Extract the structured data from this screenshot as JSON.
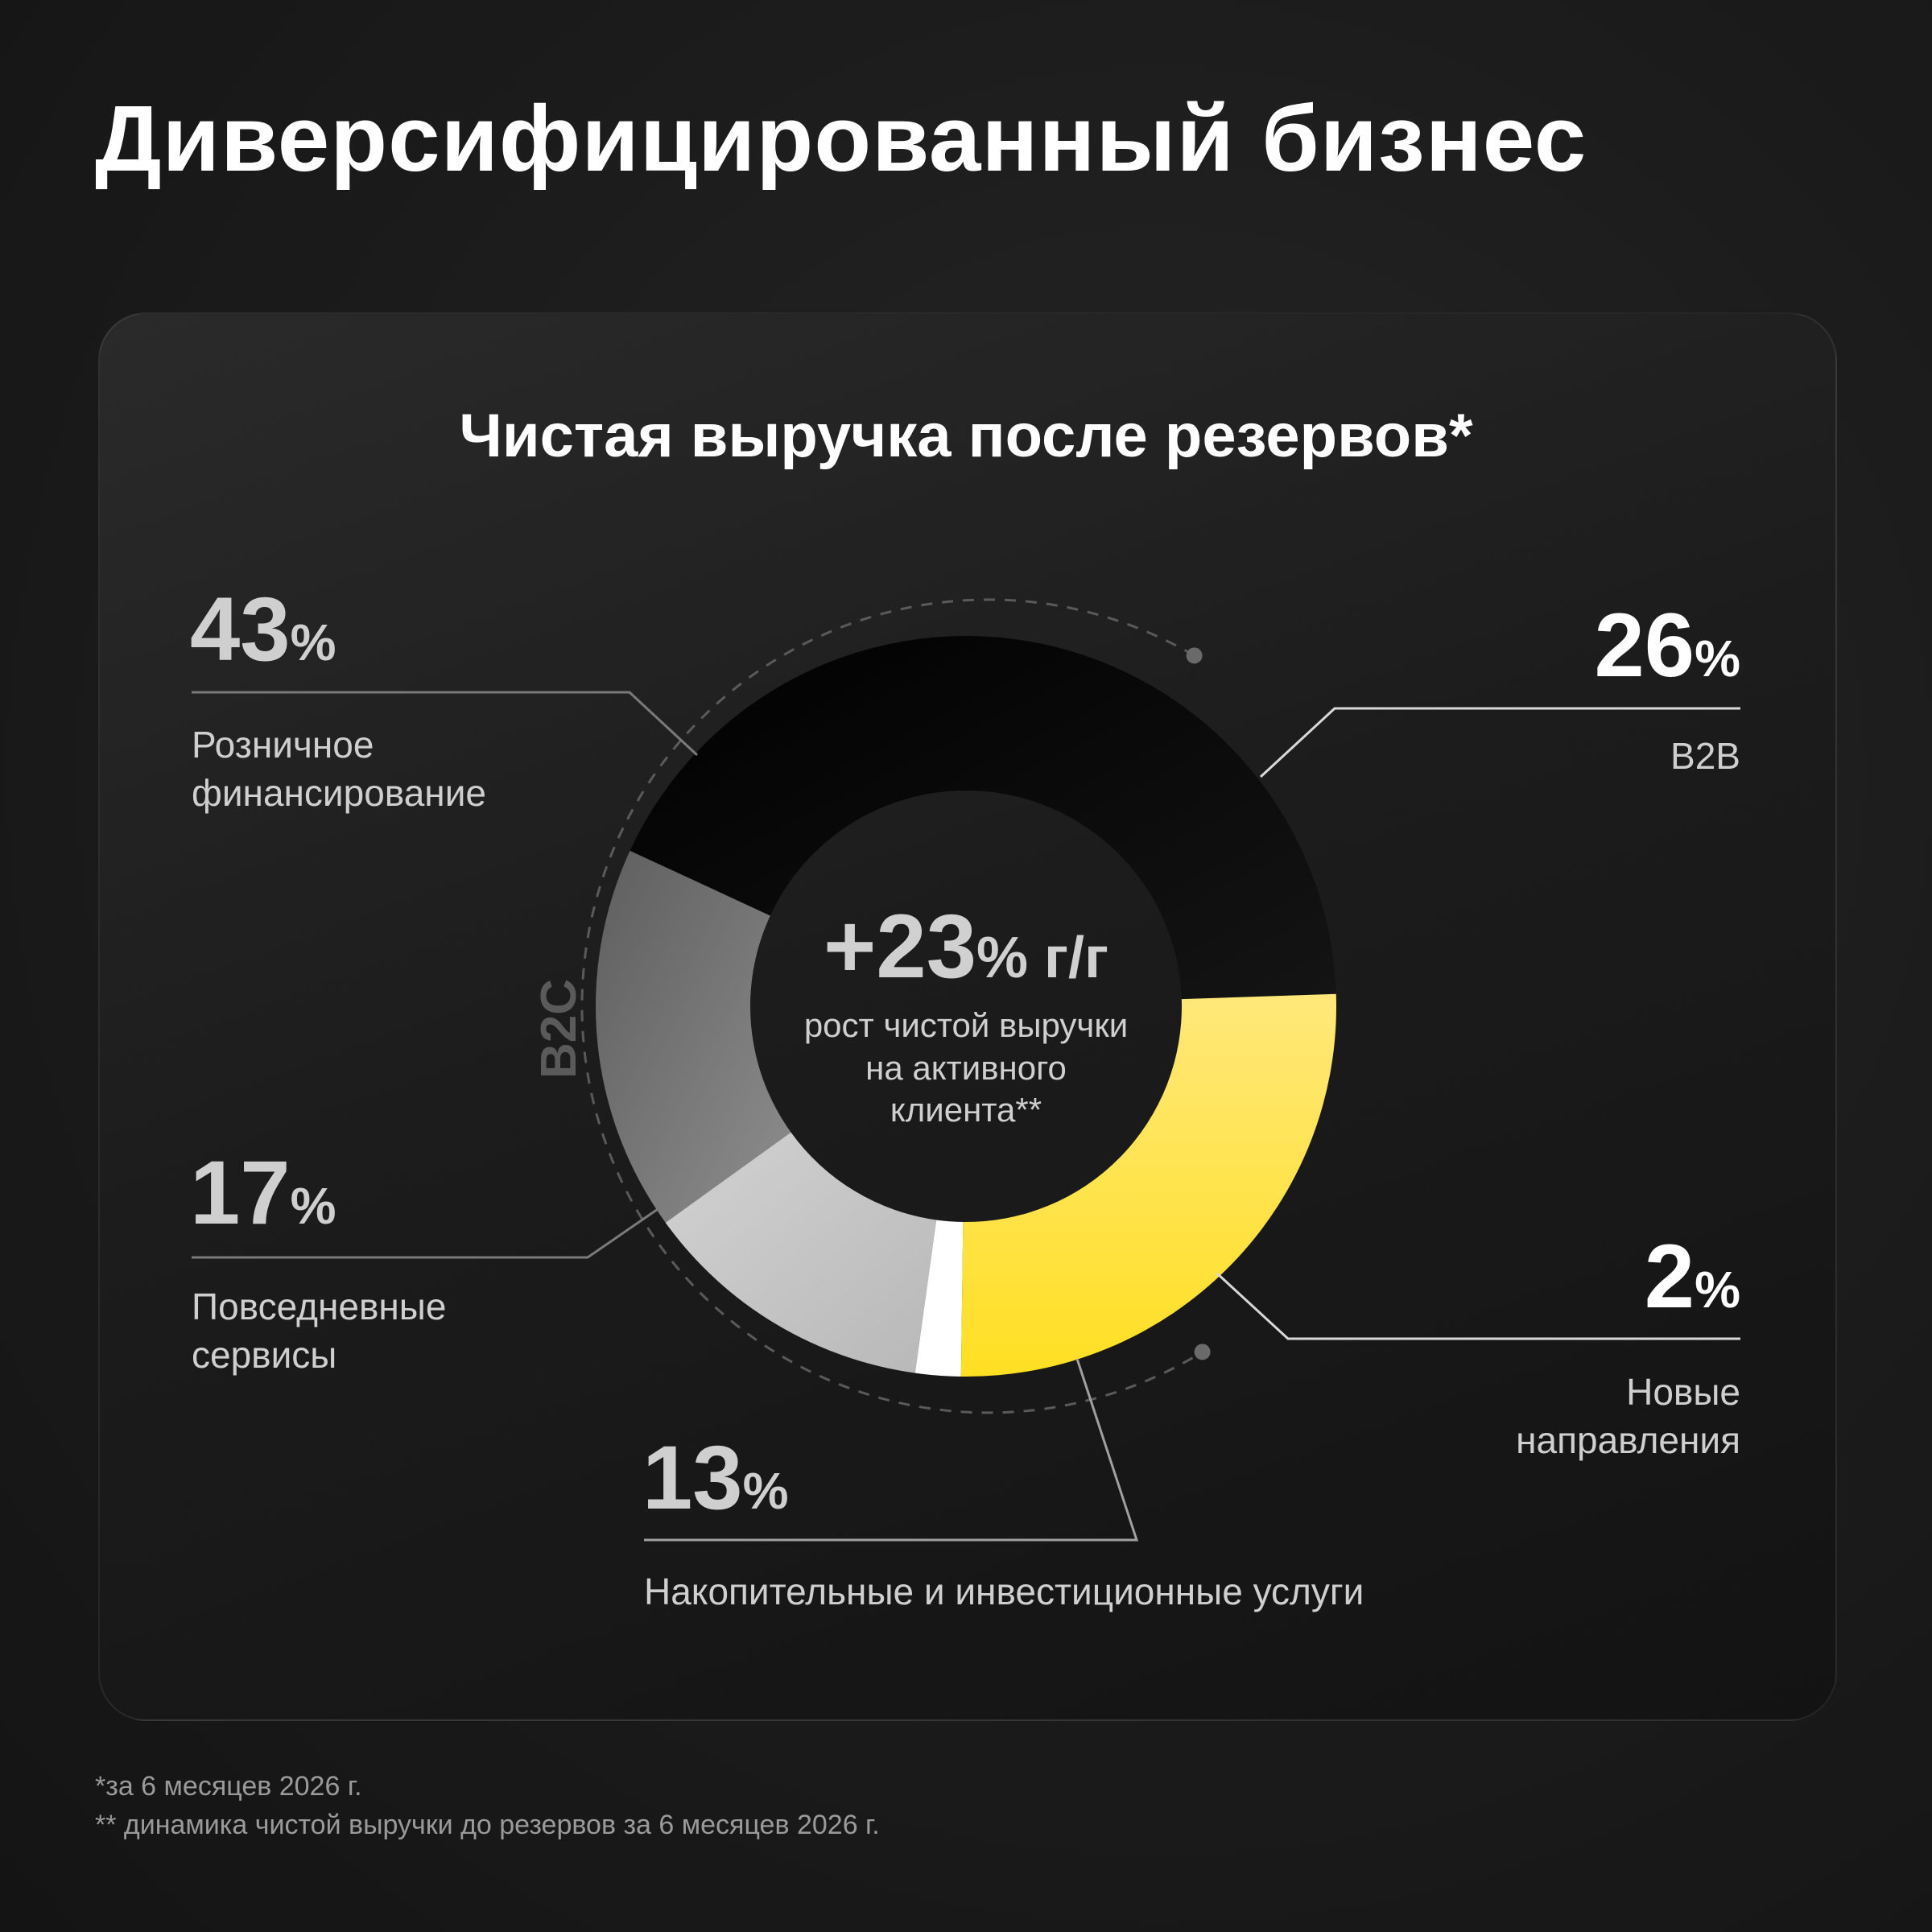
{
  "page_title": "Диверсифицированный бизнес",
  "chart_data": {
    "type": "pie",
    "title": "Чистая выручка после резервов*",
    "variant": "donut",
    "start_angle_deg": 1.9,
    "direction": "counterclockwise",
    "slices": [
      {
        "label": "Розничное финансирование",
        "value": 43,
        "color": "#060606"
      },
      {
        "label": "Повседневные сервисы",
        "value": 17,
        "color": "#7a7a7a"
      },
      {
        "label": "Накопительные и инвестиционные услуги",
        "value": 13,
        "color": "#c4c4c4"
      },
      {
        "label": "Новые направления",
        "value": 2,
        "color": "#ffffff"
      },
      {
        "label": "B2B",
        "value": 26,
        "color": "#ffe033"
      }
    ],
    "group_label": "B2C",
    "center": {
      "value": "+23",
      "unit": "% г/г",
      "caption": [
        "рост чистой выручки",
        "на активного",
        "клиента**"
      ]
    }
  },
  "labels": {
    "retail": {
      "num": "43",
      "sign": "%",
      "text": [
        "Розничное",
        "финансирование"
      ]
    },
    "daily": {
      "num": "17",
      "sign": "%",
      "text": [
        "Повседневные",
        "сервисы"
      ]
    },
    "savings": {
      "num": "13",
      "sign": "%",
      "text": [
        "Накопительные и инвестиционные услуги"
      ]
    },
    "b2b": {
      "num": "26",
      "sign": "%",
      "text": [
        "B2B"
      ]
    },
    "new": {
      "num": "2",
      "sign": "%",
      "text": [
        "Новые",
        "направления"
      ]
    }
  },
  "footnotes": [
    "*за 6 месяцев 2026 г.",
    "** динамика чистой выручки до резервов за 6 месяцев 2026 г."
  ],
  "colors": {
    "accent": "#ffe033",
    "background": "#1b1b1b",
    "card": "#1f1f1f"
  }
}
